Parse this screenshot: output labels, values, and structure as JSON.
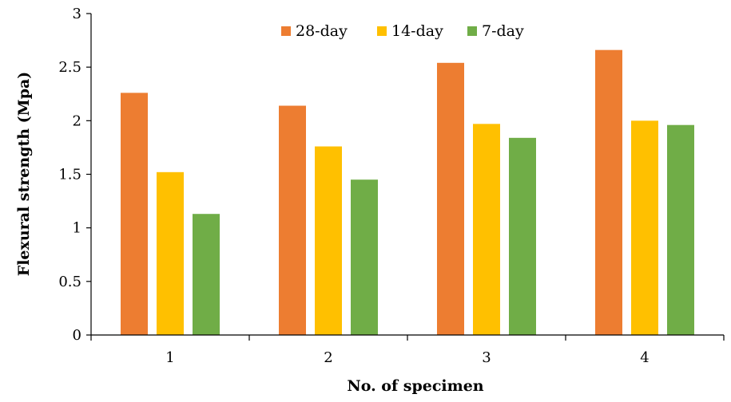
{
  "chart_data": {
    "type": "bar",
    "title": "",
    "xlabel": "No. of specimen",
    "ylabel": "Flexural strength (Mpa)",
    "categories": [
      "1",
      "2",
      "3",
      "4"
    ],
    "ylim": [
      0,
      3
    ],
    "yticks": [
      "0",
      "0.5",
      "1",
      "1.5",
      "2",
      "2.5",
      "3"
    ],
    "grid": false,
    "legend_position": "top-center",
    "series": [
      {
        "name": "28-day",
        "color": "#ED7D31",
        "values": [
          2.26,
          2.14,
          2.54,
          2.66
        ]
      },
      {
        "name": "14-day",
        "color": "#FFC000",
        "values": [
          1.52,
          1.76,
          1.97,
          2.0
        ]
      },
      {
        "name": "7-day",
        "color": "#70AD47",
        "values": [
          1.13,
          1.45,
          1.84,
          1.96
        ]
      }
    ]
  }
}
